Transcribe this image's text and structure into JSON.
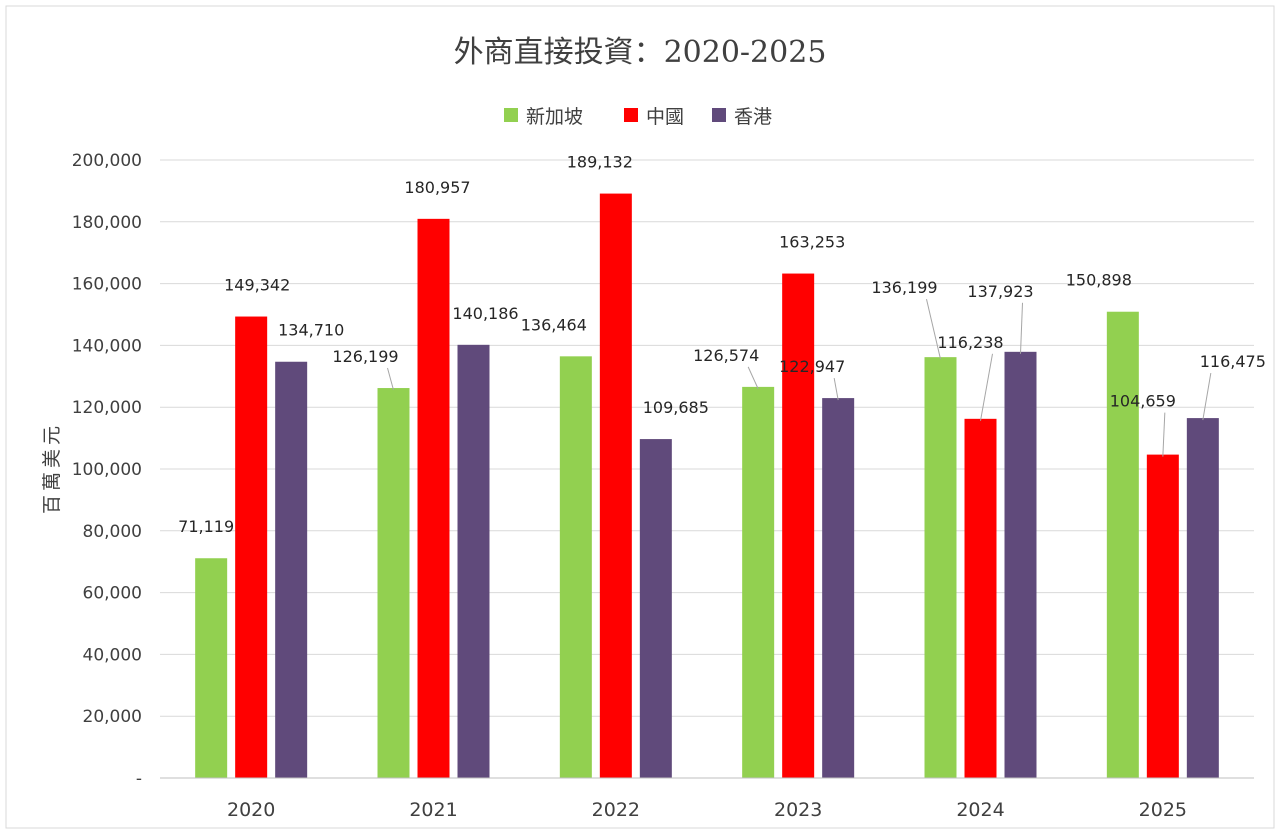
{
  "chart_data": {
    "type": "bar",
    "title": "外商直接投資：2020-2025",
    "xlabel": "",
    "ylabel": "百萬美元",
    "ylim": [
      0,
      200000
    ],
    "yticks": [
      0,
      20000,
      40000,
      60000,
      80000,
      100000,
      120000,
      140000,
      160000,
      180000,
      200000
    ],
    "ytick_labels": [
      "-",
      "20,000",
      "40,000",
      "60,000",
      "80,000",
      "100,000",
      "120,000",
      "140,000",
      "160,000",
      "180,000",
      "200,000"
    ],
    "categories": [
      "2020",
      "2021",
      "2022",
      "2023",
      "2024",
      "2025"
    ],
    "legend_position": "top",
    "grid": true,
    "series": [
      {
        "name": "新加坡",
        "color": "#92d050",
        "values": [
          71119,
          126199,
          136464,
          126574,
          136199,
          150898
        ],
        "labels": [
          "71,119",
          "126,199",
          "136,464",
          "126,574",
          "136,199",
          "150,898"
        ]
      },
      {
        "name": "中國",
        "color": "#ff0000",
        "values": [
          149342,
          180957,
          189132,
          163253,
          116238,
          104659
        ],
        "labels": [
          "149,342",
          "180,957",
          "189,132",
          "163,253",
          "116,238",
          "104,659"
        ]
      },
      {
        "name": "香港",
        "color": "#604a7b",
        "values": [
          134710,
          140186,
          109685,
          122947,
          137923,
          116475
        ],
        "labels": [
          "134,710",
          "140,186",
          "109,685",
          "122,947",
          "137,923",
          "116,475"
        ]
      }
    ]
  }
}
